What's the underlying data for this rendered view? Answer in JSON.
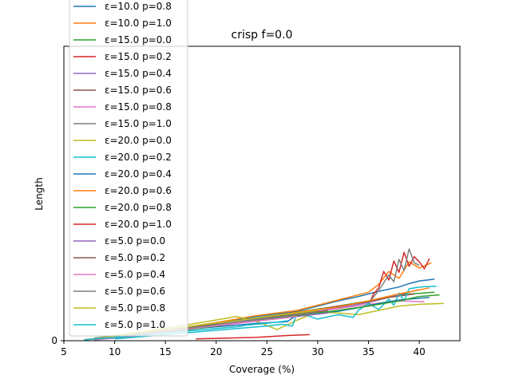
{
  "chart_data": {
    "type": "line",
    "title": "crisp f=0.0",
    "xlabel": "Coverage (%)",
    "ylabel": "Length",
    "xlim": [
      5,
      44
    ],
    "ylim": [
      0,
      34
    ],
    "xticks": [
      5,
      10,
      15,
      20,
      25,
      30,
      35,
      40
    ],
    "yticks": [
      0
    ],
    "grid": false,
    "legend_position": "top-left (overflowing above axes)",
    "series": [
      {
        "name": "ε=10.0 p=0.8",
        "color": "#1f77b4",
        "x": [
          8,
          12,
          16,
          20,
          24,
          28,
          30,
          32,
          34,
          36,
          38,
          39,
          40,
          41.5
        ],
        "y": [
          0.1,
          0.6,
          1.3,
          2.0,
          2.8,
          3.4,
          4.0,
          4.6,
          5.1,
          5.7,
          6.2,
          6.6,
          6.9,
          7.1
        ]
      },
      {
        "name": "ε=10.0 p=1.0",
        "color": "#ff7f0e",
        "x": [
          8,
          12,
          16,
          20,
          24,
          28,
          32,
          35,
          36,
          37,
          38,
          39,
          40,
          41.2
        ],
        "y": [
          0.2,
          0.7,
          1.4,
          2.1,
          2.9,
          3.5,
          4.7,
          5.6,
          6.5,
          8.0,
          7.2,
          9.1,
          8.4,
          9.0
        ]
      },
      {
        "name": "ε=15.0 p=0.0",
        "color": "#2ca02c",
        "x": [
          8,
          12,
          16,
          20,
          24,
          28,
          32,
          35,
          38,
          41.5
        ],
        "y": [
          0.1,
          0.6,
          1.2,
          1.9,
          2.6,
          3.3,
          4.0,
          4.6,
          5.3,
          5.6
        ]
      },
      {
        "name": "ε=15.0 p=0.2",
        "color": "#d62728",
        "x": [
          35,
          35.5,
          36,
          36.5,
          37,
          37.5,
          38,
          38.5,
          39,
          39.5,
          40,
          40.5,
          41
        ],
        "y": [
          4.1,
          5.4,
          6.1,
          8.0,
          7.0,
          9.2,
          7.9,
          10.2,
          8.6,
          9.7,
          9.1,
          8.3,
          9.5
        ]
      },
      {
        "name": "ε=15.0 p=0.4",
        "color": "#9467bd",
        "x": [
          8,
          12,
          16,
          20,
          24,
          28,
          32,
          35,
          37,
          39,
          40
        ],
        "y": [
          0.1,
          0.5,
          1.1,
          1.7,
          2.4,
          3.0,
          3.8,
          4.4,
          5.0,
          5.6,
          5.9
        ]
      },
      {
        "name": "ε=15.0 p=0.6",
        "color": "#8c564b",
        "x": [
          8,
          12,
          16,
          20,
          24,
          28,
          32,
          35,
          37,
          39.5
        ],
        "y": [
          0.2,
          0.7,
          1.3,
          1.9,
          2.6,
          3.2,
          4.0,
          4.5,
          5.0,
          5.4
        ]
      },
      {
        "name": "ε=15.0 p=0.8",
        "color": "#e377c2",
        "x": [
          8,
          12,
          16,
          20,
          24,
          28,
          32,
          35,
          38,
          40.5
        ],
        "y": [
          0.1,
          0.6,
          1.2,
          1.8,
          2.5,
          3.1,
          3.7,
          4.2,
          4.6,
          4.5
        ]
      },
      {
        "name": "ε=15.0 p=1.0",
        "color": "#7f7f7f",
        "x": [
          35,
          36,
          37,
          37.5,
          38,
          38.5,
          39,
          39.5,
          40
        ],
        "y": [
          4.3,
          5.8,
          7.6,
          6.8,
          9.4,
          8.1,
          10.6,
          9.0,
          8.7
        ]
      },
      {
        "name": "ε=20.0 p=0.0",
        "color": "#bcbd22",
        "x": [
          8,
          12,
          16,
          20,
          22,
          24,
          26,
          28,
          30,
          32,
          34,
          36,
          38,
          40,
          42.4
        ],
        "y": [
          0.3,
          0.9,
          1.6,
          2.4,
          2.8,
          2.2,
          1.3,
          2.4,
          3.3,
          3.2,
          3.0,
          3.5,
          4.0,
          4.2,
          4.3
        ]
      },
      {
        "name": "ε=20.0 p=0.2",
        "color": "#17becf",
        "x": [
          10,
          14,
          18,
          22,
          25,
          26.5,
          27.5,
          28,
          30,
          32,
          33.5,
          34,
          35,
          36,
          37,
          37.5,
          38,
          38.5,
          39,
          40,
          41.7
        ],
        "y": [
          0.2,
          0.6,
          1.0,
          1.4,
          1.7,
          1.9,
          1.7,
          3.3,
          2.5,
          3.0,
          2.7,
          3.5,
          4.3,
          3.6,
          4.8,
          4.1,
          5.5,
          4.6,
          6.0,
          6.2,
          6.3
        ]
      },
      {
        "name": "ε=20.0 p=0.4",
        "color": "#1f77b4",
        "x": [
          8,
          12,
          16,
          20,
          24,
          27,
          28,
          30,
          32,
          34,
          36,
          38,
          41
        ],
        "y": [
          0.3,
          0.7,
          1.2,
          1.6,
          2.0,
          2.2,
          3.0,
          3.2,
          3.4,
          3.8,
          4.3,
          4.7,
          5.0
        ]
      },
      {
        "name": "ε=20.0 p=0.6",
        "color": "#ff7f0e",
        "x": [
          8,
          12,
          16,
          20,
          24,
          28,
          32,
          35,
          38,
          41
        ],
        "y": [
          0.2,
          0.7,
          1.3,
          2.0,
          2.6,
          3.3,
          3.9,
          4.6,
          5.4,
          6.1
        ]
      },
      {
        "name": "ε=20.0 p=0.8",
        "color": "#2ca02c",
        "x": [
          8,
          12,
          16,
          20,
          24,
          28,
          32,
          35,
          38,
          40,
          42
        ],
        "y": [
          0.2,
          0.6,
          1.1,
          1.7,
          2.3,
          2.9,
          3.5,
          4.0,
          4.6,
          5.1,
          5.3
        ]
      },
      {
        "name": "ε=20.0 p=1.0",
        "color": "#d62728",
        "x": [
          18,
          21,
          24,
          27,
          29.2
        ],
        "y": [
          0.2,
          0.3,
          0.4,
          0.6,
          0.7
        ]
      },
      {
        "name": "ε=5.0 p=0.0",
        "color": "#9467bd",
        "x": [
          7,
          10,
          13,
          16,
          19,
          22,
          25,
          28,
          31
        ],
        "y": [
          0.1,
          0.4,
          0.8,
          1.2,
          1.6,
          2.0,
          2.4,
          2.8,
          3.2
        ]
      },
      {
        "name": "ε=5.0 p=0.2",
        "color": "#8c564b",
        "x": [
          7,
          10,
          13,
          16,
          19,
          22,
          25,
          28,
          31
        ],
        "y": [
          0.1,
          0.5,
          0.9,
          1.3,
          1.8,
          2.3,
          2.7,
          3.1,
          3.5
        ]
      },
      {
        "name": "ε=5.0 p=0.4",
        "color": "#e377c2",
        "x": [
          7,
          10,
          13,
          16,
          19,
          22,
          25,
          28
        ],
        "y": [
          0.1,
          0.4,
          0.8,
          1.2,
          1.6,
          2.0,
          2.4,
          2.8
        ]
      },
      {
        "name": "ε=5.0 p=0.6",
        "color": "#7f7f7f",
        "x": [
          7,
          10,
          13,
          16,
          19,
          22,
          25,
          28,
          30
        ],
        "y": [
          0.1,
          0.4,
          0.9,
          1.3,
          1.7,
          2.2,
          2.6,
          3.0,
          3.3
        ]
      },
      {
        "name": "ε=5.0 p=0.8",
        "color": "#bcbd22",
        "x": [
          7,
          10,
          13,
          16,
          19,
          22,
          25,
          28,
          30
        ],
        "y": [
          0.1,
          0.5,
          1.0,
          1.4,
          1.9,
          2.3,
          2.8,
          3.2,
          3.5
        ]
      },
      {
        "name": "ε=5.0 p=1.0",
        "color": "#17becf",
        "x": [
          7,
          10,
          13,
          16,
          19,
          22,
          23,
          25,
          27
        ],
        "y": [
          0.1,
          0.4,
          0.7,
          1.0,
          1.3,
          1.6,
          1.8,
          2.0,
          2.3
        ]
      }
    ]
  }
}
